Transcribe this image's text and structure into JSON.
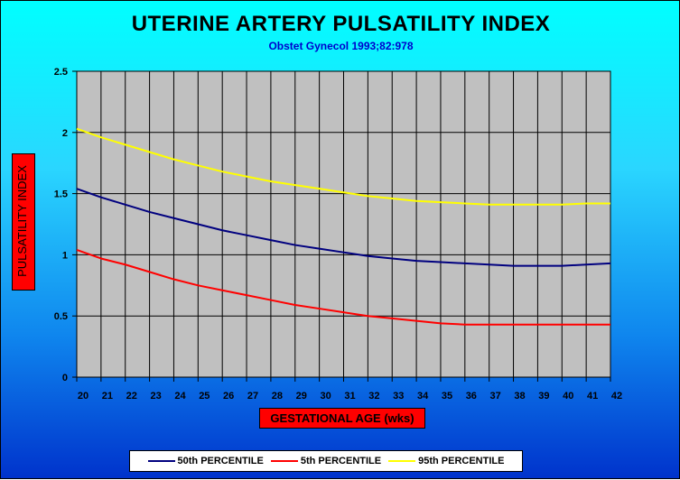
{
  "title": "UTERINE ARTERY PULSATILITY INDEX",
  "subtitle": "Obstet Gynecol 1993;82:978",
  "chart_data": {
    "type": "line",
    "title": "UTERINE ARTERY PULSATILITY INDEX",
    "subtitle": "Obstet Gynecol 1993;82:978",
    "xlabel": "GESTATIONAL AGE (wks)",
    "ylabel": "PULSATILITY INDEX",
    "categories": [
      "20",
      "21",
      "22",
      "23",
      "24",
      "25",
      "26",
      "27",
      "28",
      "29",
      "30",
      "31",
      "32",
      "33",
      "34",
      "35",
      "36",
      "37",
      "38",
      "39",
      "40",
      "41",
      "42"
    ],
    "yticks": [
      "0",
      "0.5",
      "1",
      "1.5",
      "2",
      "2.5"
    ],
    "ylim": [
      0,
      2.5
    ],
    "grid": true,
    "legend_position": "bottom",
    "colors": {
      "plot_background": "#c0c0c0",
      "gridline": "#000000"
    },
    "series": [
      {
        "name": "50th PERCENTILE",
        "color": "#00007f",
        "values": [
          1.54,
          1.47,
          1.41,
          1.35,
          1.3,
          1.25,
          1.2,
          1.16,
          1.12,
          1.08,
          1.05,
          1.02,
          0.99,
          0.97,
          0.95,
          0.94,
          0.93,
          0.92,
          0.91,
          0.91,
          0.91,
          0.92,
          0.93
        ]
      },
      {
        "name": "5th PERCENTILE",
        "color": "#ff0000",
        "values": [
          1.04,
          0.97,
          0.92,
          0.86,
          0.8,
          0.75,
          0.71,
          0.67,
          0.63,
          0.59,
          0.56,
          0.53,
          0.5,
          0.48,
          0.46,
          0.44,
          0.43,
          0.43,
          0.43,
          0.43,
          0.43,
          0.43,
          0.43
        ]
      },
      {
        "name": "95th PERCENTILE",
        "color": "#ffff00",
        "values": [
          2.03,
          1.96,
          1.9,
          1.84,
          1.78,
          1.73,
          1.68,
          1.64,
          1.6,
          1.57,
          1.54,
          1.51,
          1.48,
          1.46,
          1.44,
          1.43,
          1.42,
          1.41,
          1.41,
          1.41,
          1.41,
          1.42,
          1.42
        ]
      }
    ]
  }
}
